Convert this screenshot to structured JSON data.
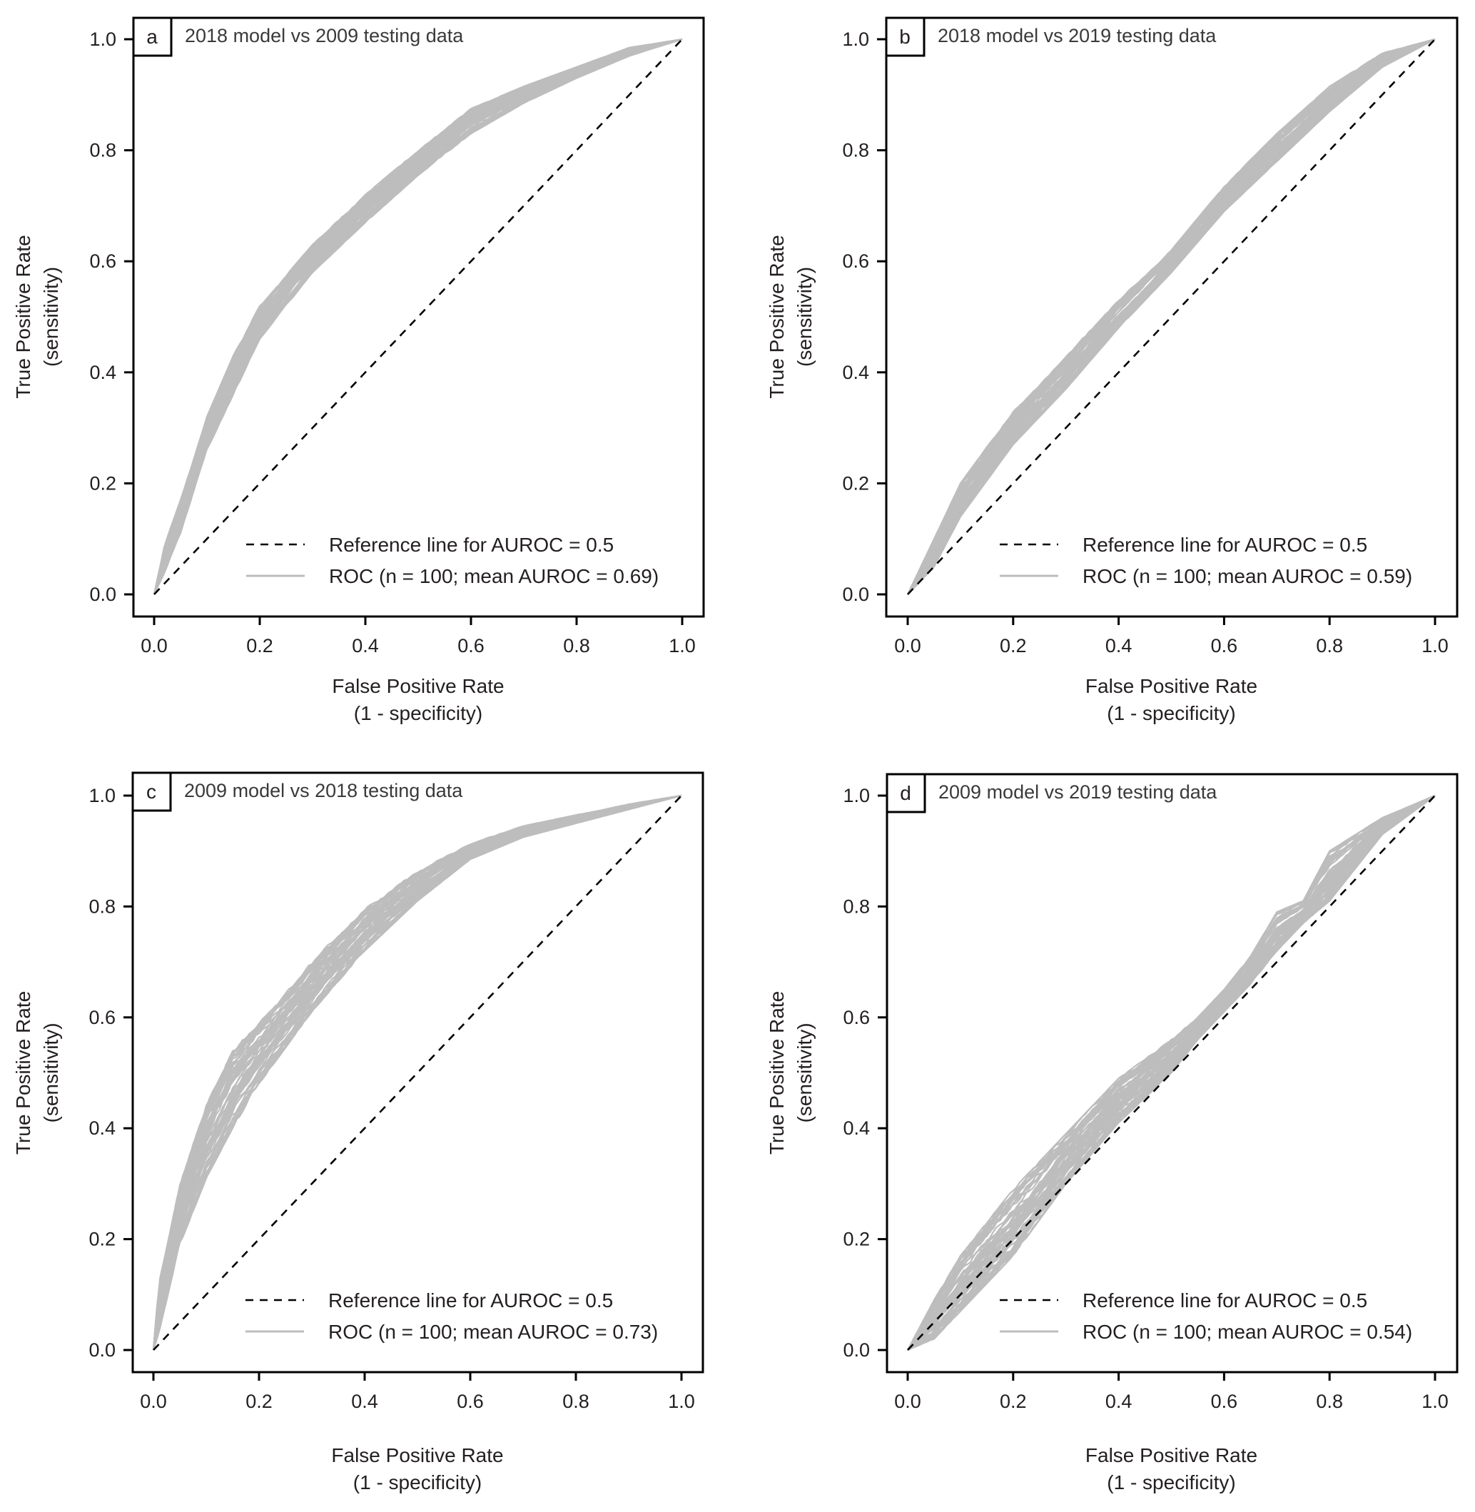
{
  "figure": {
    "background": "#ffffff",
    "roc_color": "#bdbdbd",
    "reference_color": "#000000",
    "axis_color": "#000000"
  },
  "chart_data": [
    {
      "type": "line",
      "panel_letter": "a",
      "title": "2018 model vs 2009 testing data",
      "xlabel": "False Positive Rate",
      "xlabel2": "(1 - specificity)",
      "ylabel": "True Positive Rate",
      "ylabel2": "(sensitivity)",
      "xlim": [
        0,
        1
      ],
      "ylim": [
        0,
        1
      ],
      "xticks": [
        "0.0",
        "0.2",
        "0.4",
        "0.6",
        "0.8",
        "1.0"
      ],
      "yticks": [
        "0.0",
        "0.2",
        "0.4",
        "0.6",
        "0.8",
        "1.0"
      ],
      "grid": false,
      "legend_position": "bottom-right",
      "legend": [
        "Reference line for AUROC = 0.5",
        "ROC (n = 100; mean AUROC = 0.69)"
      ],
      "n_curves": 100,
      "mean_auroc": 0.69,
      "series": [
        {
          "name": "ROC band upper",
          "x": [
            0,
            0.02,
            0.05,
            0.1,
            0.15,
            0.2,
            0.3,
            0.4,
            0.5,
            0.6,
            0.7,
            0.8,
            0.9,
            1.0
          ],
          "y": [
            0,
            0.09,
            0.17,
            0.32,
            0.43,
            0.52,
            0.63,
            0.72,
            0.8,
            0.875,
            0.915,
            0.95,
            0.985,
            1.0
          ]
        },
        {
          "name": "ROC band lower",
          "x": [
            0,
            0.02,
            0.05,
            0.1,
            0.15,
            0.2,
            0.3,
            0.4,
            0.5,
            0.6,
            0.7,
            0.8,
            0.9,
            1.0
          ],
          "y": [
            0,
            0.04,
            0.11,
            0.26,
            0.36,
            0.46,
            0.58,
            0.67,
            0.755,
            0.83,
            0.885,
            0.93,
            0.97,
            1.0
          ]
        },
        {
          "name": "Reference line for AUROC = 0.5",
          "x": [
            0,
            1
          ],
          "y": [
            0,
            1
          ]
        }
      ]
    },
    {
      "type": "line",
      "panel_letter": "b",
      "title": "2018 model vs 2019 testing data",
      "xlabel": "False Positive Rate",
      "xlabel2": "(1 - specificity)",
      "ylabel": "True Positive Rate",
      "ylabel2": "(sensitivity)",
      "xlim": [
        0,
        1
      ],
      "ylim": [
        0,
        1
      ],
      "xticks": [
        "0.0",
        "0.2",
        "0.4",
        "0.6",
        "0.8",
        "1.0"
      ],
      "yticks": [
        "0.0",
        "0.2",
        "0.4",
        "0.6",
        "0.8",
        "1.0"
      ],
      "grid": false,
      "legend_position": "bottom-right",
      "legend": [
        "Reference line for AUROC = 0.5",
        "ROC (n = 100; mean AUROC = 0.59)"
      ],
      "n_curves": 100,
      "mean_auroc": 0.59,
      "series": [
        {
          "name": "ROC band upper",
          "x": [
            0,
            0.05,
            0.1,
            0.2,
            0.3,
            0.4,
            0.5,
            0.6,
            0.7,
            0.8,
            0.9,
            1.0
          ],
          "y": [
            0,
            0.1,
            0.2,
            0.33,
            0.43,
            0.53,
            0.62,
            0.735,
            0.83,
            0.915,
            0.975,
            1.0
          ]
        },
        {
          "name": "ROC band lower",
          "x": [
            0,
            0.05,
            0.1,
            0.2,
            0.3,
            0.4,
            0.5,
            0.6,
            0.7,
            0.8,
            0.9,
            1.0
          ],
          "y": [
            0,
            0.05,
            0.14,
            0.27,
            0.37,
            0.48,
            0.58,
            0.69,
            0.78,
            0.87,
            0.95,
            1.0
          ]
        },
        {
          "name": "Reference line for AUROC = 0.5",
          "x": [
            0,
            1
          ],
          "y": [
            0,
            1
          ]
        }
      ]
    },
    {
      "type": "line",
      "panel_letter": "c",
      "title": "2009 model vs 2018 testing data",
      "xlabel": "False Positive Rate",
      "xlabel2": "(1 - specificity)",
      "ylabel": "True Positive Rate",
      "ylabel2": "(sensitivity)",
      "xlim": [
        0,
        1
      ],
      "ylim": [
        0,
        1
      ],
      "xticks": [
        "0.0",
        "0.2",
        "0.4",
        "0.6",
        "0.8",
        "1.0"
      ],
      "yticks": [
        "0.0",
        "0.2",
        "0.4",
        "0.6",
        "0.8",
        "1.0"
      ],
      "grid": false,
      "legend_position": "bottom-right",
      "legend": [
        "Reference line for AUROC = 0.5",
        "ROC (n = 100; mean AUROC = 0.73)"
      ],
      "n_curves": 100,
      "mean_auroc": 0.73,
      "series": [
        {
          "name": "ROC band upper",
          "x": [
            0,
            0.01,
            0.05,
            0.1,
            0.15,
            0.2,
            0.3,
            0.4,
            0.5,
            0.6,
            0.7,
            0.8,
            0.9,
            1.0
          ],
          "y": [
            0,
            0.12,
            0.3,
            0.45,
            0.55,
            0.6,
            0.7,
            0.8,
            0.865,
            0.915,
            0.945,
            0.965,
            0.985,
            1.0
          ]
        },
        {
          "name": "ROC band lower",
          "x": [
            0,
            0.01,
            0.05,
            0.1,
            0.15,
            0.2,
            0.3,
            0.4,
            0.5,
            0.6,
            0.7,
            0.8,
            0.9,
            1.0
          ],
          "y": [
            0,
            0.03,
            0.19,
            0.31,
            0.4,
            0.48,
            0.61,
            0.72,
            0.81,
            0.885,
            0.925,
            0.95,
            0.975,
            1.0
          ]
        },
        {
          "name": "Reference line for AUROC = 0.5",
          "x": [
            0,
            1
          ],
          "y": [
            0,
            1
          ]
        }
      ]
    },
    {
      "type": "line",
      "panel_letter": "d",
      "title": "2009 model vs 2019  testing data",
      "xlabel": "False Positive Rate",
      "xlabel2": "(1 - specificity)",
      "ylabel": "True Positive Rate",
      "ylabel2": "(sensitivity)",
      "xlim": [
        0,
        1
      ],
      "ylim": [
        0,
        1
      ],
      "xticks": [
        "0.0",
        "0.2",
        "0.4",
        "0.6",
        "0.8",
        "1.0"
      ],
      "yticks": [
        "0.0",
        "0.2",
        "0.4",
        "0.6",
        "0.8",
        "1.0"
      ],
      "grid": false,
      "legend_position": "bottom-right",
      "legend": [
        "Reference line for AUROC = 0.5",
        "ROC (n = 100; mean AUROC = 0.54)"
      ],
      "n_curves": 100,
      "mean_auroc": 0.54,
      "series": [
        {
          "name": "ROC band upper",
          "x": [
            0,
            0.05,
            0.1,
            0.2,
            0.3,
            0.4,
            0.5,
            0.55,
            0.6,
            0.65,
            0.7,
            0.75,
            0.8,
            0.85,
            0.9,
            1.0
          ],
          "y": [
            0,
            0.09,
            0.17,
            0.29,
            0.39,
            0.49,
            0.56,
            0.6,
            0.65,
            0.71,
            0.79,
            0.81,
            0.9,
            0.93,
            0.96,
            1.0
          ]
        },
        {
          "name": "ROC band lower",
          "x": [
            0,
            0.05,
            0.1,
            0.2,
            0.3,
            0.4,
            0.5,
            0.55,
            0.6,
            0.65,
            0.7,
            0.75,
            0.8,
            0.85,
            0.9,
            1.0
          ],
          "y": [
            0,
            0.02,
            0.07,
            0.17,
            0.3,
            0.41,
            0.5,
            0.56,
            0.61,
            0.66,
            0.72,
            0.77,
            0.81,
            0.87,
            0.93,
            1.0
          ]
        },
        {
          "name": "Reference line for AUROC = 0.5",
          "x": [
            0,
            1
          ],
          "y": [
            0,
            1
          ]
        }
      ]
    }
  ]
}
